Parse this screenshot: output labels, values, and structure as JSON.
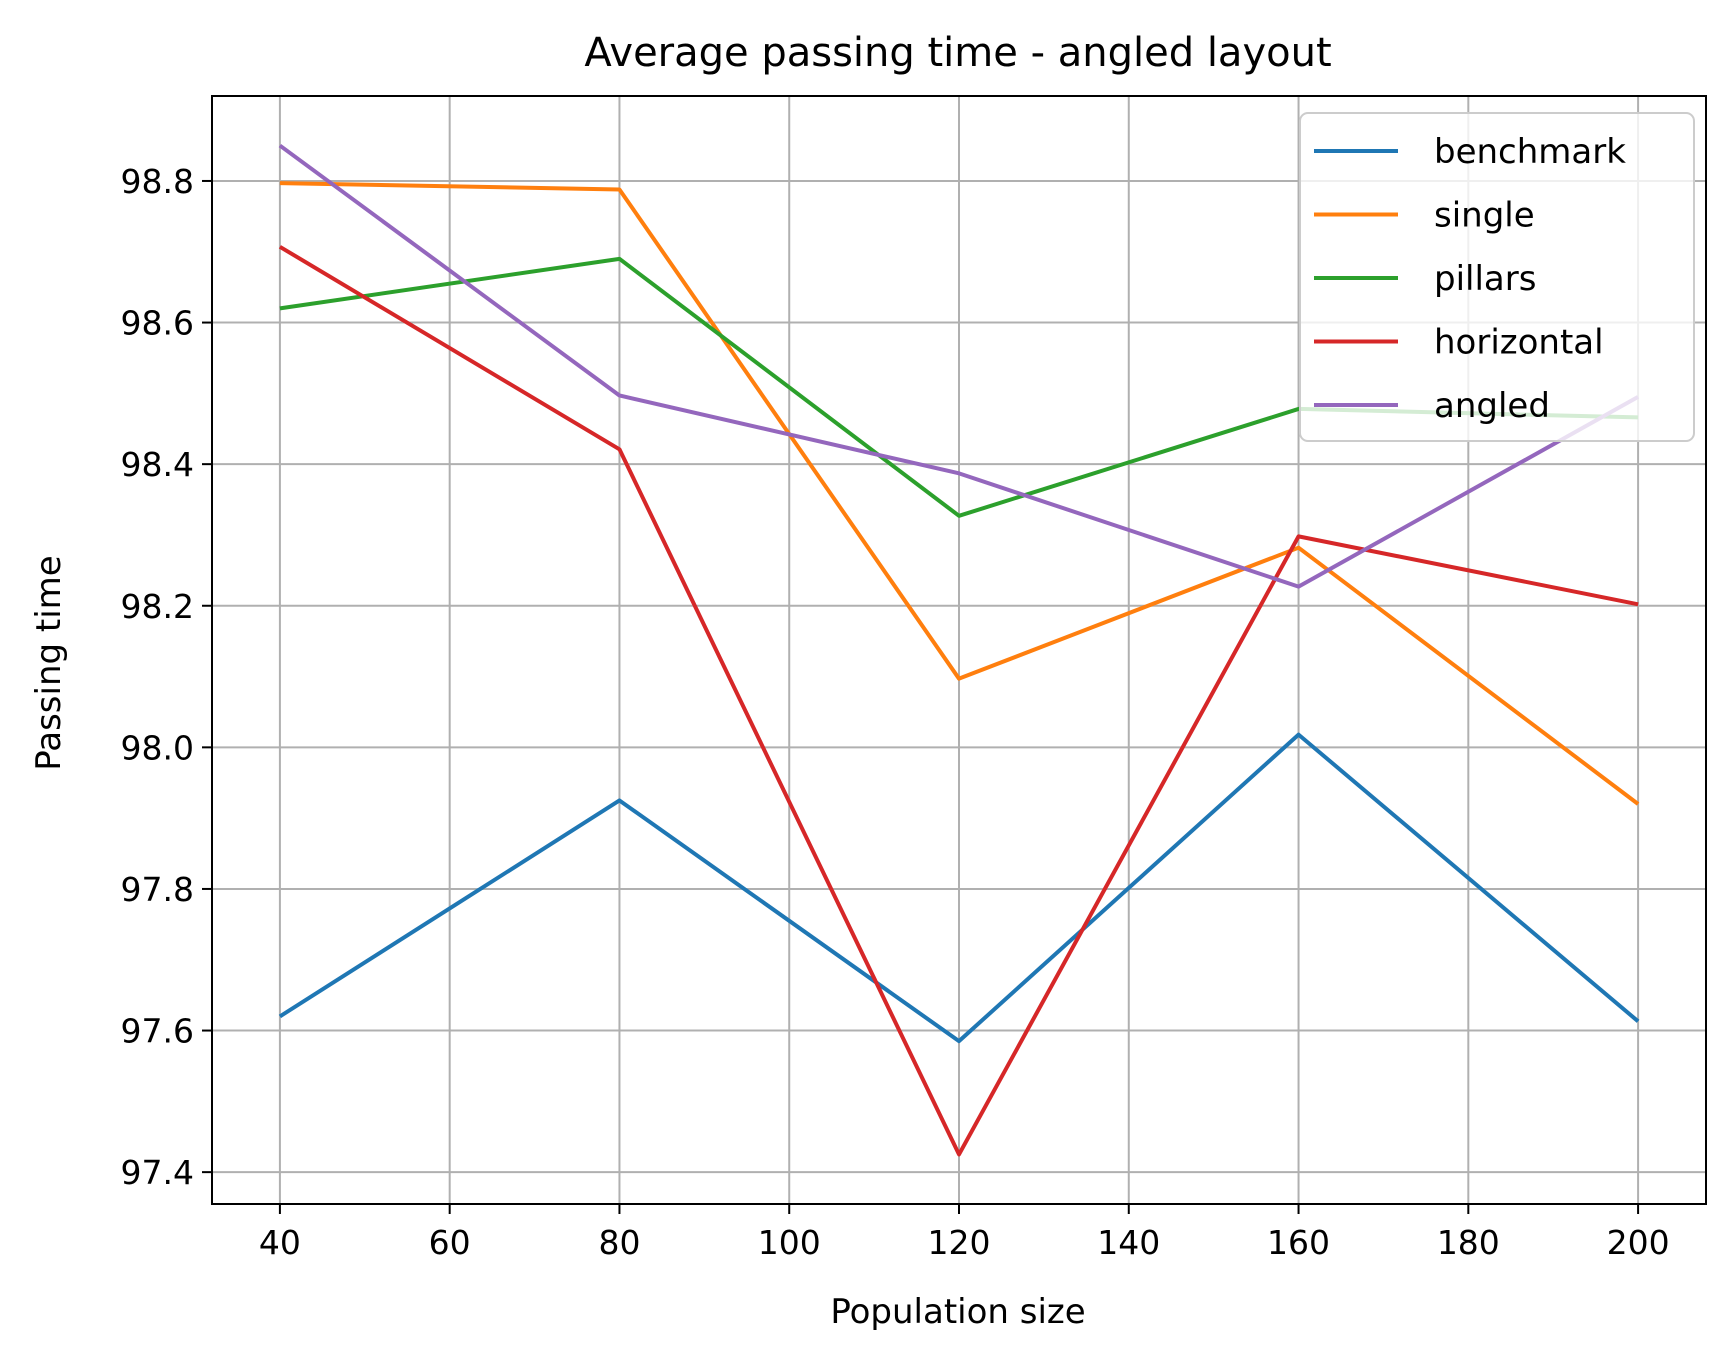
{
  "chart_data": {
    "type": "line",
    "title": "Average passing time - angled layout",
    "xlabel": "Population size",
    "ylabel": "Passing time",
    "x": [
      40,
      80,
      120,
      160,
      200
    ],
    "xlim": [
      32,
      208
    ],
    "ylim": [
      97.355,
      98.92
    ],
    "xticks": [
      40,
      60,
      80,
      100,
      120,
      140,
      160,
      180,
      200
    ],
    "yticks": [
      97.4,
      97.6,
      97.8,
      98.0,
      98.2,
      98.4,
      98.6,
      98.8
    ],
    "ytick_labels": [
      "97.4",
      "97.6",
      "97.8",
      "98.0",
      "98.2",
      "98.4",
      "98.6",
      "98.8"
    ],
    "grid": true,
    "legend_position": "upper-right",
    "series": [
      {
        "name": "benchmark",
        "color": "#1f77b4",
        "values": [
          97.62,
          97.925,
          97.585,
          98.018,
          97.613
        ]
      },
      {
        "name": "single",
        "color": "#ff7f0e",
        "values": [
          98.797,
          98.788,
          98.097,
          98.282,
          97.92
        ]
      },
      {
        "name": "pillars",
        "color": "#2ca02c",
        "values": [
          98.62,
          98.69,
          98.327,
          98.478,
          98.466
        ]
      },
      {
        "name": "horizontal",
        "color": "#d62728",
        "values": [
          98.707,
          98.421,
          97.425,
          98.298,
          98.202
        ]
      },
      {
        "name": "angled",
        "color": "#9467bd",
        "values": [
          98.85,
          98.497,
          98.387,
          98.227,
          98.495
        ]
      }
    ]
  }
}
